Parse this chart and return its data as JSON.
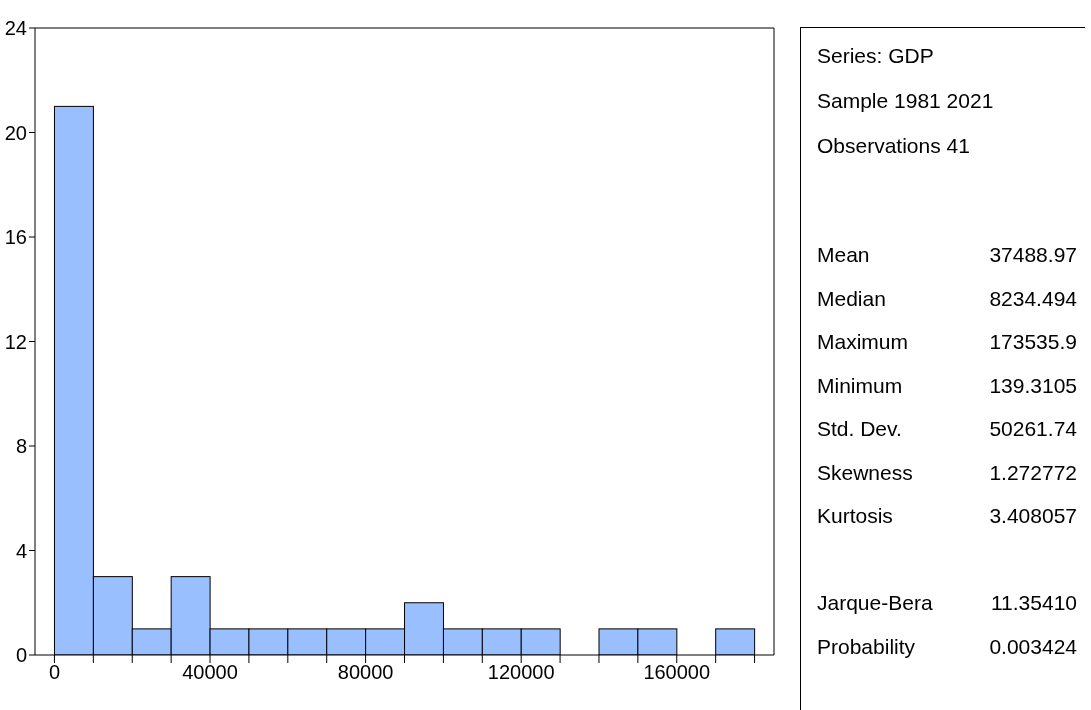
{
  "chart_data": [
    {
      "type": "histogram",
      "bins": [
        0,
        10000,
        20000,
        30000,
        40000,
        50000,
        60000,
        70000,
        80000,
        90000,
        100000,
        110000,
        120000,
        130000,
        140000,
        150000,
        160000,
        170000,
        180000
      ],
      "values": [
        21,
        3,
        1,
        3,
        1,
        1,
        1,
        1,
        1,
        2,
        1,
        1,
        1,
        0,
        1,
        1,
        0,
        1
      ],
      "color": "#99bfff",
      "xlim": [
        -5000,
        185000
      ],
      "xticks": [
        0,
        {
          "value": 10000,
          "label": null
        },
        {
          "value": 20000,
          "label": null
        },
        {
          "value": 30000,
          "label": null
        },
        40000,
        {
          "value": 50000,
          "label": null
        },
        {
          "value": 60000,
          "label": null
        },
        {
          "value": 70000,
          "label": null
        },
        80000,
        {
          "value": 90000,
          "label": null
        },
        {
          "value": 100000,
          "label": null
        },
        {
          "value": 110000,
          "label": null
        },
        120000,
        {
          "value": 130000,
          "label": null
        },
        {
          "value": 140000,
          "label": null
        },
        {
          "value": 150000,
          "label": null
        },
        160000,
        {
          "value": 170000,
          "label": null
        },
        {
          "value": 180000,
          "label": null
        }
      ],
      "ylim": [
        0,
        24
      ],
      "yticks": [
        0,
        4,
        8,
        12,
        16,
        20,
        24
      ]
    },
    {
      "type": "other",
      "annotations": [
        "Series: GDP",
        "Sample 1981 2021",
        "Observations 41"
      ],
      "categories": [
        "Mean",
        "Median",
        "Maximum",
        "Minimum",
        "Std. Dev.",
        "Skewness",
        "Kurtosis",
        null,
        "Jarque-Bera",
        "Probability"
      ],
      "value_labels": [
        "37488.97",
        "8234.494",
        "173535.9",
        "139.3105",
        "50261.74",
        "1.272772",
        "3.408057",
        null,
        "11.35410",
        "0.003424"
      ]
    }
  ]
}
